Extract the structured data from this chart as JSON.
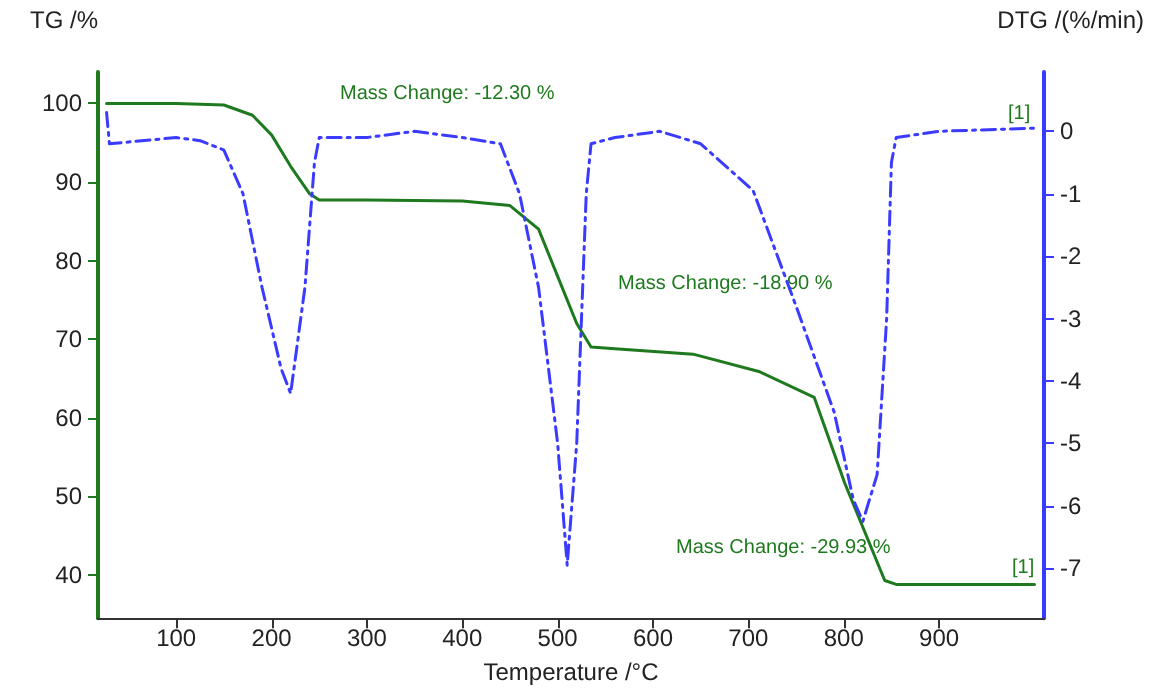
{
  "chart_data": {
    "type": "line",
    "xlabel": "Temperature /°C",
    "ylabel": "TG /%",
    "y2label": "DTG /(%/min)",
    "series": [
      {
        "name": null,
        "color": "#1f7a1f",
        "line_style": "solid",
        "x": [
          27,
          100,
          150,
          180,
          200,
          220,
          240,
          250,
          300,
          400,
          450,
          480,
          500,
          520,
          535,
          560,
          642,
          711,
          769,
          801,
          843,
          855,
          870,
          1000
        ],
        "values": [
          100,
          100,
          99.8,
          98.5,
          96,
          92,
          88.5,
          87.7,
          87.7,
          87.6,
          87,
          84,
          78,
          72,
          69,
          68.8,
          68.1,
          65.9,
          62.6,
          51.7,
          39.3,
          38.8,
          38.8,
          38.8
        ]
      },
      {
        "name": null,
        "color": "#3b3bff",
        "line_style": "dashed",
        "axis": "y2",
        "x": [
          27,
          30,
          100,
          125,
          150,
          170,
          190,
          210,
          220,
          235,
          245,
          250,
          300,
          350,
          400,
          440,
          460,
          480,
          500,
          510,
          520,
          530,
          535,
          560,
          607,
          650,
          705,
          750,
          790,
          810,
          820,
          835,
          845,
          850,
          855,
          900,
          1000
        ],
        "values": [
          0.3,
          -0.2,
          -0.1,
          -0.15,
          -0.3,
          -1,
          -2.5,
          -3.8,
          -4.2,
          -2.5,
          -0.5,
          -0.1,
          -0.1,
          0,
          -0.1,
          -0.2,
          -1,
          -2.5,
          -5,
          -6.95,
          -5,
          -1,
          -0.2,
          -0.1,
          0,
          -0.2,
          -0.95,
          -2.8,
          -4.5,
          -5.9,
          -6.25,
          -5.5,
          -3,
          -0.5,
          -0.1,
          0,
          0.05
        ]
      }
    ],
    "xlim": [
      18,
      1010
    ],
    "xticks": [
      100,
      200,
      300,
      400,
      500,
      600,
      700,
      800,
      900
    ],
    "ylim": [
      34.5,
      104
    ],
    "yticks": [
      40,
      50,
      60,
      70,
      80,
      90,
      100
    ],
    "y2lim": [
      -7.8,
      0.95
    ],
    "y2ticks": [
      -7,
      -6,
      -5,
      -4,
      -3,
      -2,
      -1,
      0
    ],
    "annotations": [
      "Mass Change: -12.30 %",
      "Mass Change: -18.90 %",
      "Mass Change: -29.93 %",
      "[1]",
      "[1]"
    ],
    "grid": false,
    "marker": "none"
  }
}
